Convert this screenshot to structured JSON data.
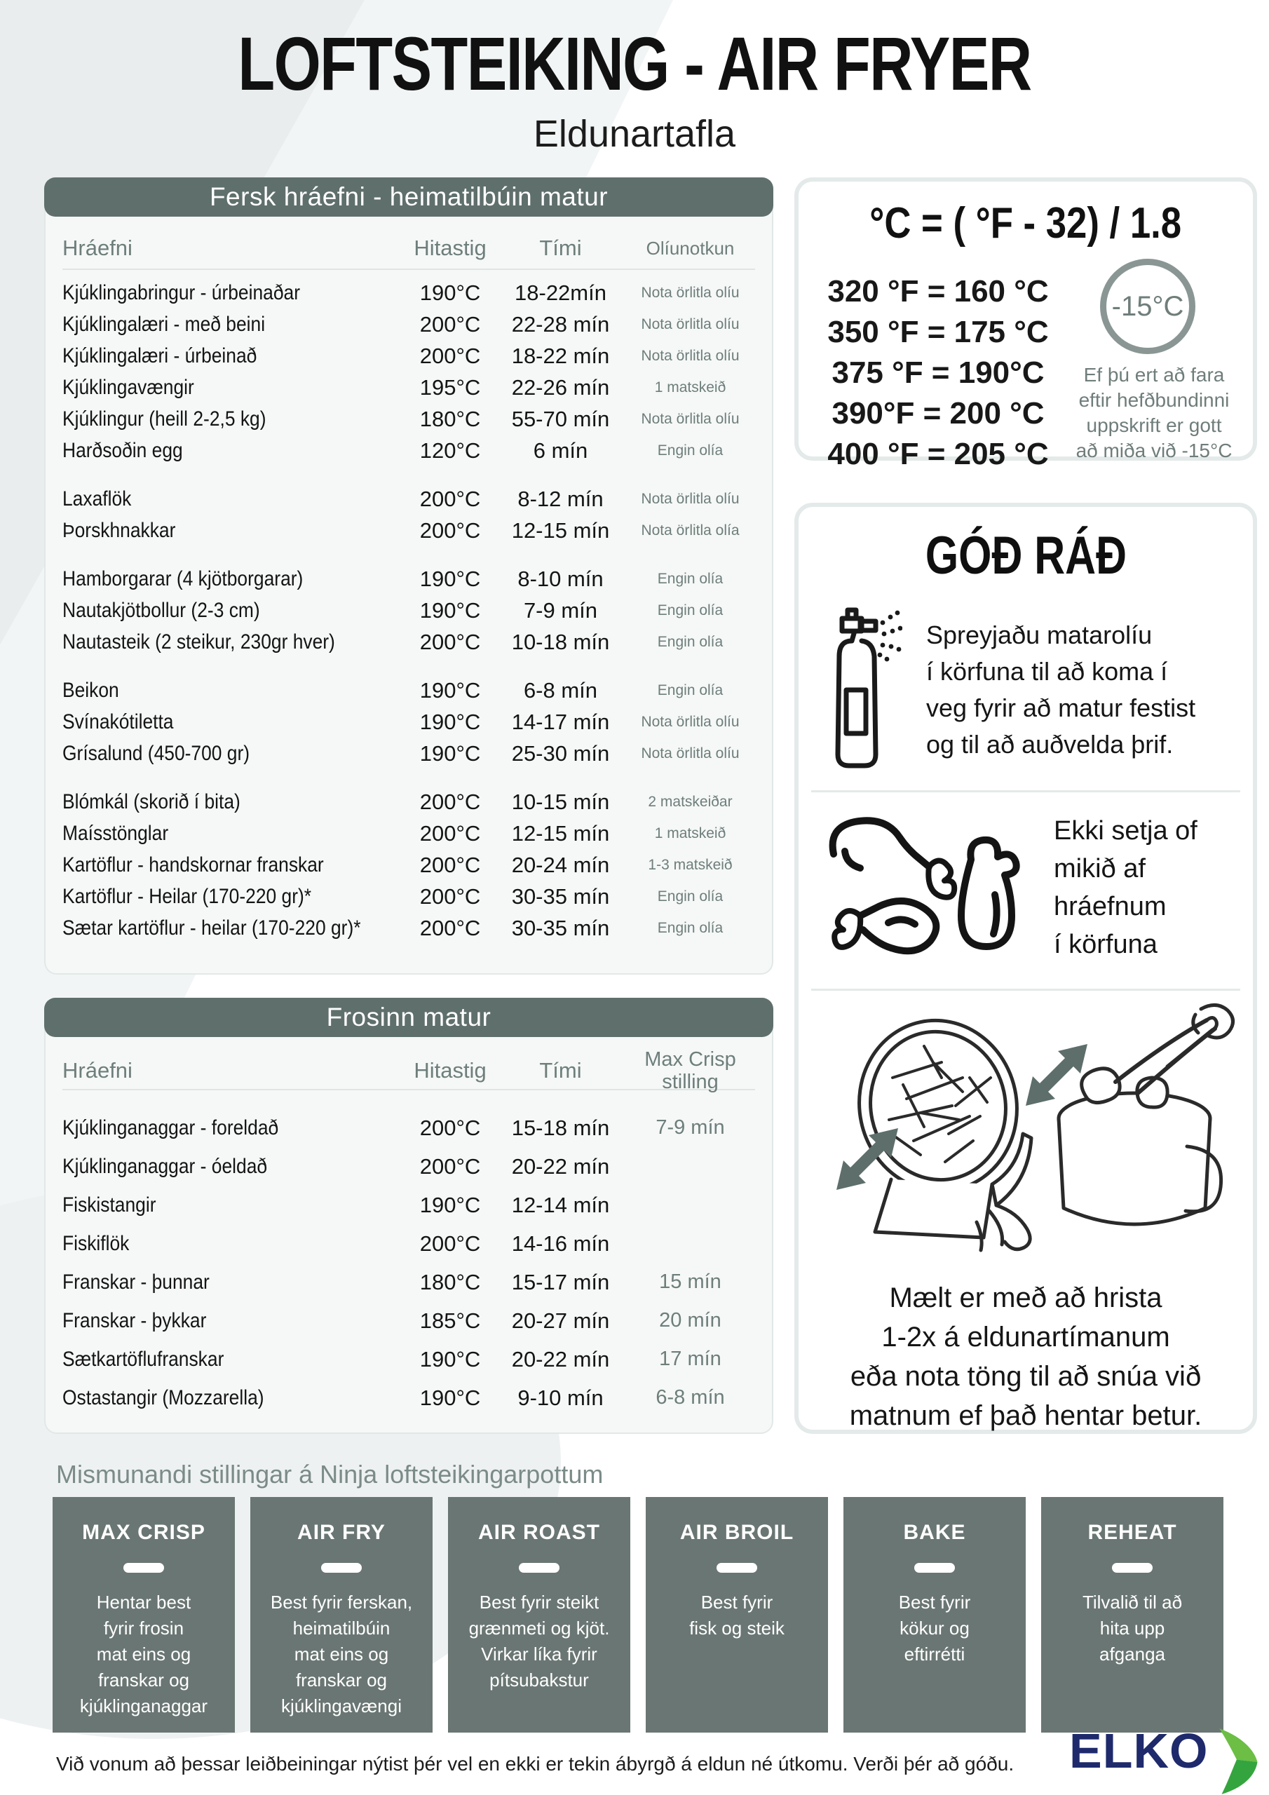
{
  "title": "LOFTSTEIKING - AIR FRYER",
  "subtitle": "Eldunartafla",
  "fresh_table": {
    "header": "Fersk hráefni - heimatilbúin matur",
    "columns": [
      "Hráefni",
      "Hitastig",
      "Tími",
      "Olíunotkun"
    ],
    "groups": [
      [
        {
          "name": "Kjúklingabringur - úrbeinaðar",
          "temp": "190°C",
          "time": "18-22mín",
          "oil": "Nota örlitla olíu"
        },
        {
          "name": "Kjúklingalæri - með beini",
          "temp": "200°C",
          "time": "22-28 mín",
          "oil": "Nota örlitla olíu"
        },
        {
          "name": "Kjúklingalæri - úrbeinað",
          "temp": "200°C",
          "time": "18-22 mín",
          "oil": "Nota örlitla olíu"
        },
        {
          "name": "Kjúklingavængir",
          "temp": "195°C",
          "time": "22-26 mín",
          "oil": "1 matskeið"
        },
        {
          "name": "Kjúklingur (heill 2-2,5 kg)",
          "temp": "180°C",
          "time": "55-70 mín",
          "oil": "Nota örlitla olíu"
        },
        {
          "name": "Harðsoðin egg",
          "temp": "120°C",
          "time": "6 mín",
          "oil": "Engin olía"
        }
      ],
      [
        {
          "name": "Laxaflök",
          "temp": "200°C",
          "time": "8-12 mín",
          "oil": "Nota örlitla olíu"
        },
        {
          "name": "Þorskhnakkar",
          "temp": "200°C",
          "time": "12-15 mín",
          "oil": "Nota örlitla olía"
        }
      ],
      [
        {
          "name": "Hamborgarar (4 kjötborgarar)",
          "temp": "190°C",
          "time": "8-10 mín",
          "oil": "Engin olía"
        },
        {
          "name": "Nautakjötbollur (2-3 cm)",
          "temp": "190°C",
          "time": "7-9 mín",
          "oil": "Engin olía"
        },
        {
          "name": "Nautasteik  (2 steikur, 230gr hver)",
          "temp": "200°C",
          "time": "10-18 mín",
          "oil": "Engin olía"
        }
      ],
      [
        {
          "name": "Beikon",
          "temp": "190°C",
          "time": "6-8 mín",
          "oil": "Engin olía"
        },
        {
          "name": "Svínakótiletta",
          "temp": "190°C",
          "time": "14-17 mín",
          "oil": "Nota örlitla olíu"
        },
        {
          "name": "Grísalund  (450-700 gr)",
          "temp": "190°C",
          "time": "25-30 mín",
          "oil": "Nota örlitla olíu"
        }
      ],
      [
        {
          "name": "Blómkál  (skorið í bita)",
          "temp": "200°C",
          "time": "10-15 mín",
          "oil": "2 matskeiðar"
        },
        {
          "name": "Maísstönglar",
          "temp": "200°C",
          "time": "12-15 mín",
          "oil": "1 matskeið"
        },
        {
          "name": "Kartöflur - handskornar franskar",
          "temp": "200°C",
          "time": "20-24 mín",
          "oil": "1-3 matskeið"
        },
        {
          "name": "Kartöflur - Heilar (170-220 gr)*",
          "temp": "200°C",
          "time": "30-35 mín",
          "oil": "Engin olía"
        },
        {
          "name": "Sætar kartöflur - heilar (170-220 gr)*",
          "temp": "200°C",
          "time": "30-35 mín",
          "oil": "Engin olía"
        }
      ]
    ]
  },
  "frozen_table": {
    "header": "Frosinn matur",
    "columns": [
      "Hráefni",
      "Hitastig",
      "Tími",
      "Max Crisp\nstilling"
    ],
    "rows": [
      {
        "name": "Kjúklinganaggar - foreldað",
        "temp": "200°C",
        "time": "15-18 mín",
        "crisp": "7-9 mín"
      },
      {
        "name": "Kjúklinganaggar - óeldað",
        "temp": "200°C",
        "time": "20-22 mín",
        "crisp": ""
      },
      {
        "name": "Fiskistangir",
        "temp": "190°C",
        "time": "12-14 mín",
        "crisp": ""
      },
      {
        "name": "Fiskiflök",
        "temp": "200°C",
        "time": "14-16 mín",
        "crisp": ""
      },
      {
        "name": "Franskar - þunnar",
        "temp": "180°C",
        "time": "15-17 mín",
        "crisp": "15 mín"
      },
      {
        "name": "Franskar - þykkar",
        "temp": "185°C",
        "time": "20-27 mín",
        "crisp": "20 mín"
      },
      {
        "name": "Sætkartöflufranskar",
        "temp": "190°C",
        "time": "20-22 mín",
        "crisp": "17 mín"
      },
      {
        "name": "Ostastangir (Mozzarella)",
        "temp": "190°C",
        "time": "9-10 mín",
        "crisp": "6-8 mín"
      }
    ]
  },
  "conversion": {
    "formula": "°C = ( °F - 32) / 1.8",
    "rows": [
      "320 °F = 160 °C",
      "350 °F = 175 °C",
      "375 °F = 190°C",
      "390°F = 200 °C",
      "400 °F = 205 °C"
    ],
    "badge": "-15°C",
    "note": "Ef þú ert að fara eftir hefðbundinni uppskrift er gott að miða við -15°C"
  },
  "tips": {
    "header": "GÓÐ RÁÐ",
    "tip1": "Spreyjaðu matarolíu\ní körfuna til að koma í\nveg fyrir að matur festist\nog til að auðvelda þrif.",
    "tip2": "Ekki setja of\nmikið af\nhráefnum\ní körfuna",
    "tip3": "Mælt er með að hrista\n1-2x á eldunartímanum\neða nota töng til að snúa við\nmatnum ef það hentar betur."
  },
  "modes": {
    "heading": "Mismunandi stillingar á Ninja loftsteikingarpottum",
    "items": [
      {
        "name": "MAX CRISP",
        "desc": "Hentar best\nfyrir frosin\nmat eins og\nfranskar og\nkjúklinganaggar"
      },
      {
        "name": "AIR FRY",
        "desc": "Best fyrir ferskan,\nheimatilbúin\nmat eins og\nfranskar og\nkjúklingavængi"
      },
      {
        "name": "AIR ROAST",
        "desc": "Best fyrir steikt\ngrænmeti og kjöt.\nVirkar líka fyrir\npítsubakstur"
      },
      {
        "name": "AIR BROIL",
        "desc": "Best fyrir\nfisk og steik"
      },
      {
        "name": "BAKE",
        "desc": "Best fyrir\nkökur og\neftirrétti"
      },
      {
        "name": "REHEAT",
        "desc": "Tilvalið til að\nhita upp\nafganga"
      }
    ]
  },
  "footer": {
    "disclaimer": "Við vonum að þessar leiðbeiningar nýtist þér vel en ekki er tekin ábyrgð á eldun né útkomu. Verði þér að góðu.",
    "logo": "ELKO"
  },
  "colors": {
    "slate_header": "#5f6f6c",
    "slate_box": "#6a7673",
    "muted": "#6e7e7b",
    "logo_navy": "#1e2a6b",
    "logo_green_light": "#6cbe45",
    "logo_green_dark": "#34a53e"
  }
}
